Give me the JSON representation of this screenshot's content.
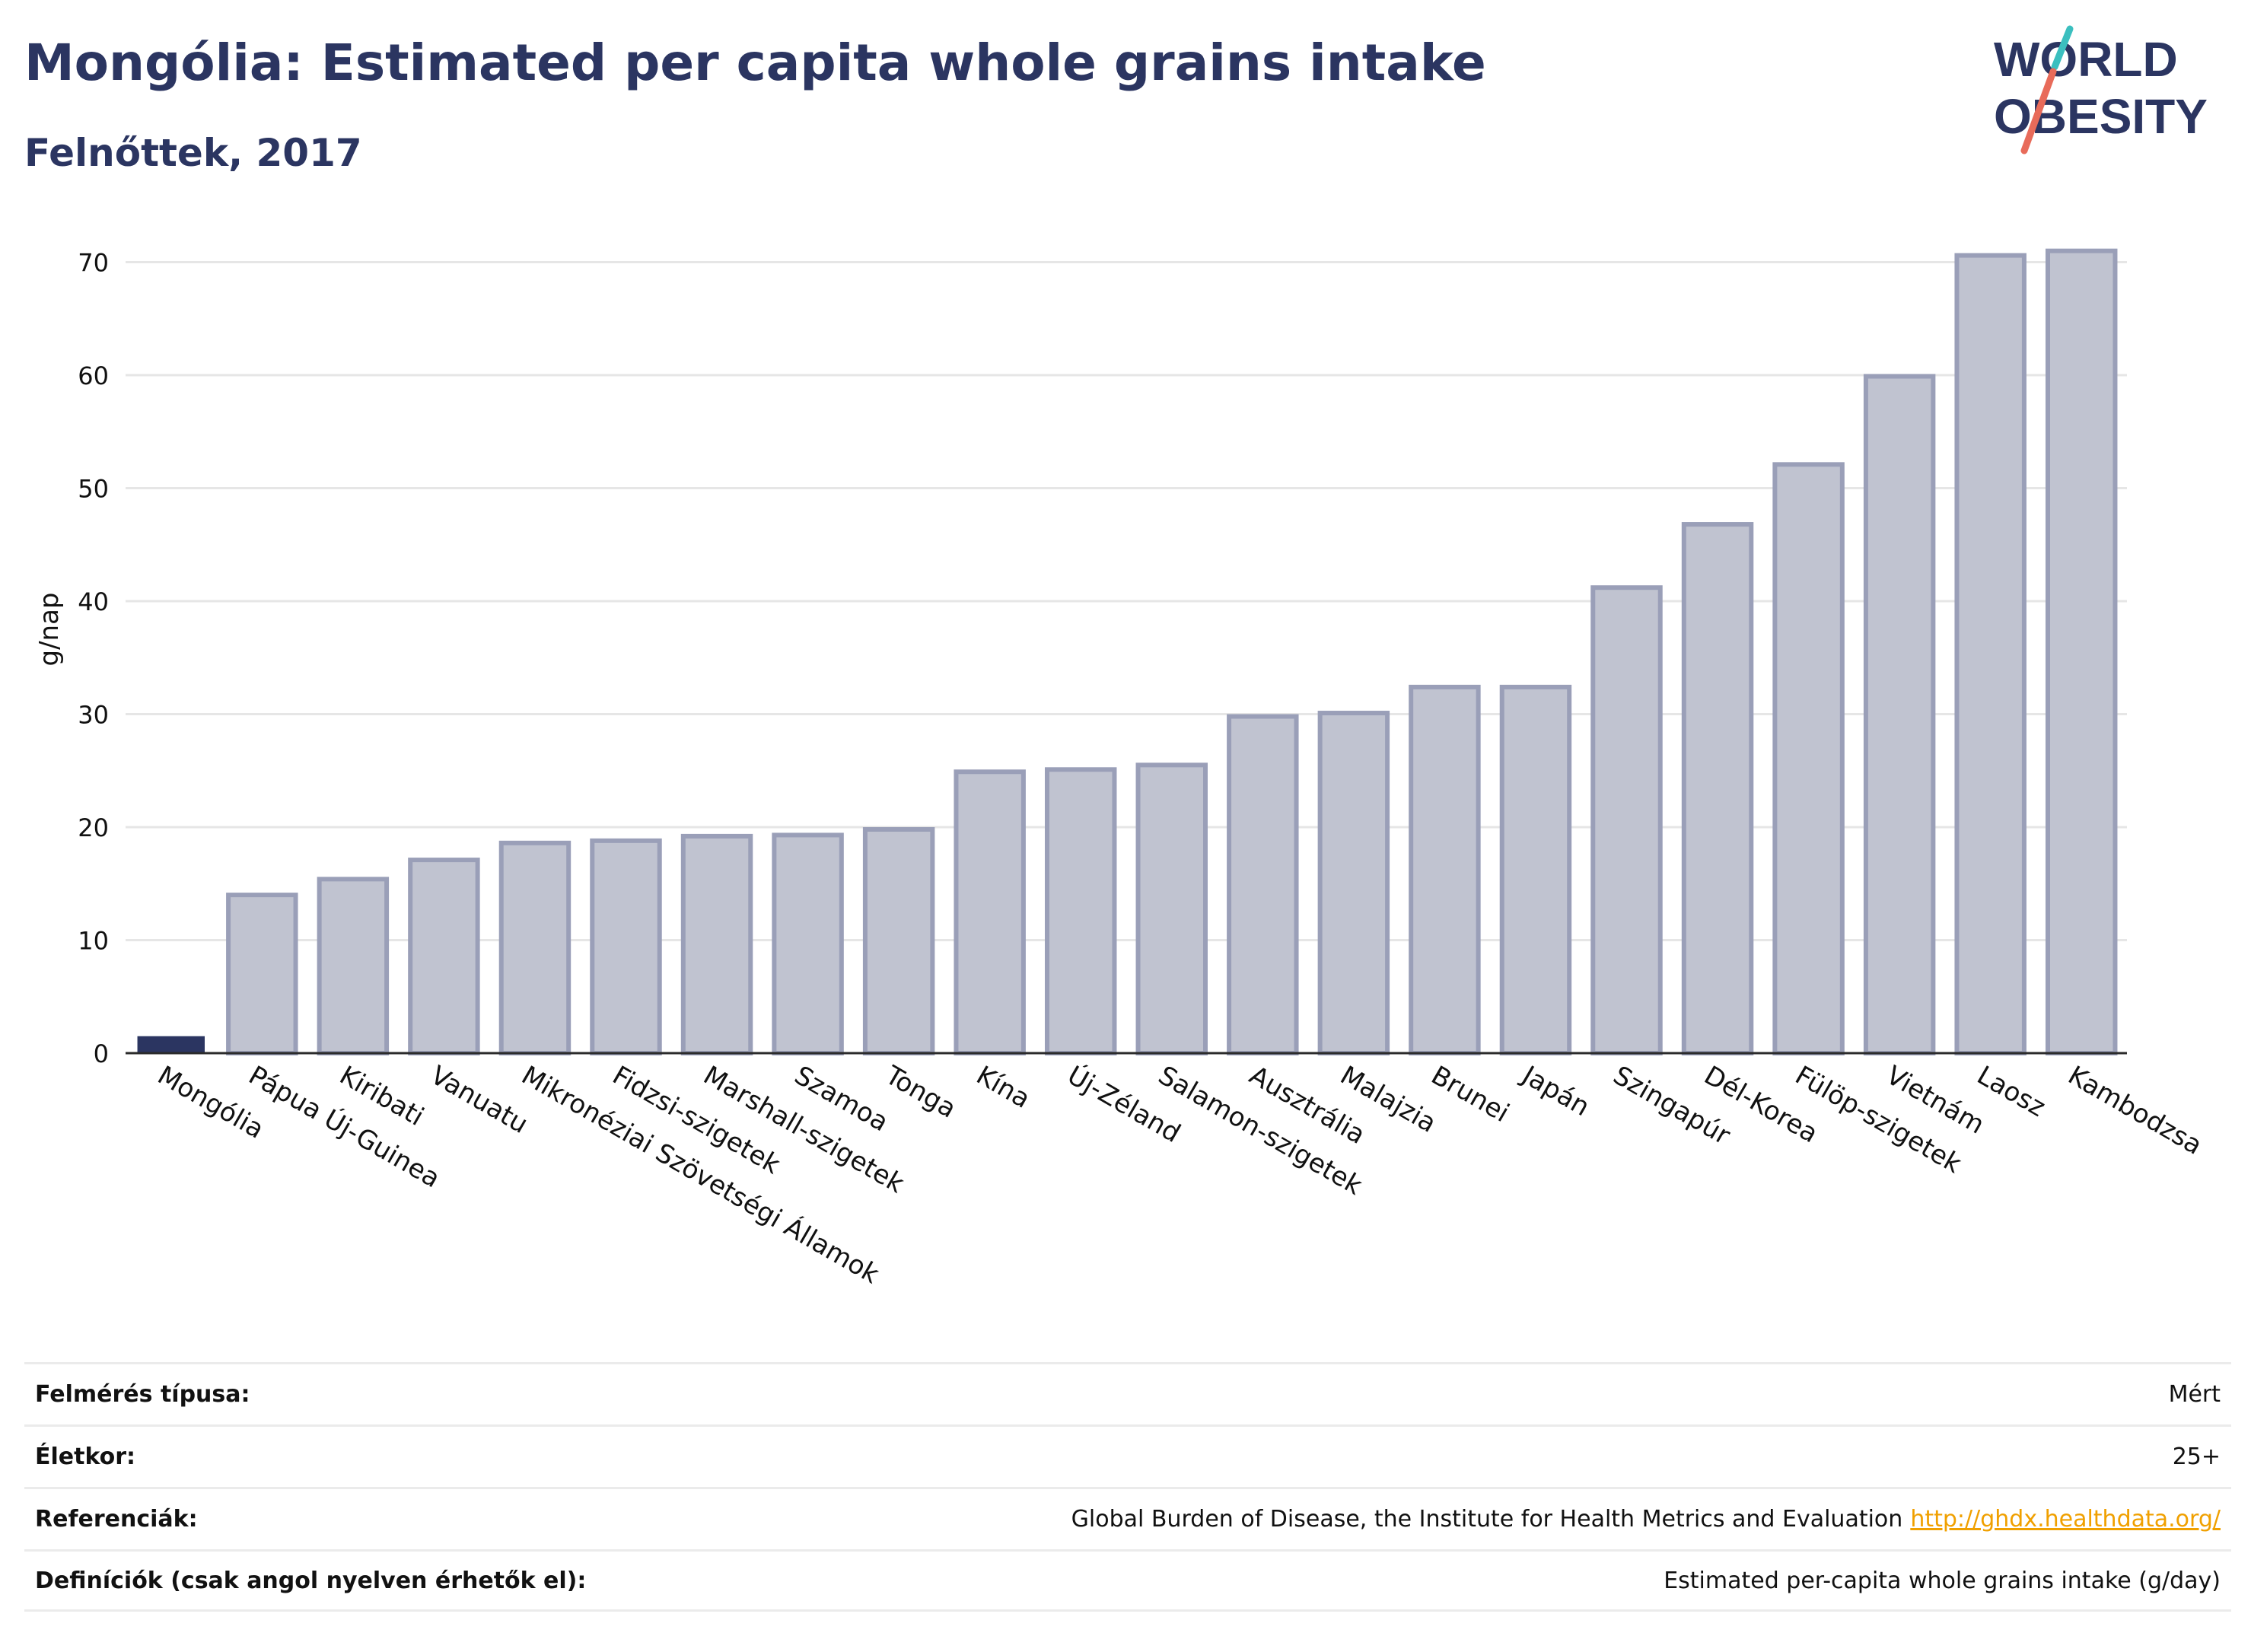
{
  "header": {
    "title": "Mongólia: Estimated per capita whole grains intake",
    "subtitle": "Felnőttek, 2017"
  },
  "logo": {
    "line1": "WORLD",
    "line2": "OBESITY"
  },
  "colors": {
    "highlight": "#2b3561",
    "bar_fill": "#c0c3d0",
    "bar_stroke": "#9a9fb8",
    "grid": "#e6e6e6",
    "link": "#f0a000",
    "logo_teal": "#3bbfbf",
    "logo_coral": "#e86b5a"
  },
  "chart_data": {
    "type": "bar",
    "ylabel": "g/nap",
    "ylim": [
      0,
      73
    ],
    "yticks": [
      0,
      10,
      20,
      30,
      40,
      50,
      60,
      70
    ],
    "grid": true,
    "highlighted_category": "Mongólia",
    "categories": [
      "Mongólia",
      "Pápua Új-Guinea",
      "Kiribati",
      "Vanuatu",
      "Mikronéziai Szövetségi Államok",
      "Fidzsi-szigetek",
      "Marshall-szigetek",
      "Szamoa",
      "Tonga",
      "Kína",
      "Új-Zéland",
      "Salamon-szigetek",
      "Ausztrália",
      "Malajzia",
      "Brunei",
      "Japán",
      "Szingapúr",
      "Dél-Korea",
      "Fülöp-szigetek",
      "Vietnám",
      "Laosz",
      "Kambodzsa"
    ],
    "values": [
      1.5,
      14,
      15.4,
      17.1,
      18.6,
      18.8,
      19.2,
      19.3,
      19.8,
      24.9,
      25.1,
      25.5,
      29.8,
      30.1,
      32.4,
      32.4,
      41.2,
      46.8,
      52.1,
      59.9,
      70.6,
      71
    ]
  },
  "info": {
    "rows": [
      {
        "label": "Felmérés típusa:",
        "value": "Mért"
      },
      {
        "label": "Életkor:",
        "value": "25+"
      },
      {
        "label": "Referenciák:",
        "value": "Global Burden of Disease, the Institute for Health Metrics and Evaluation",
        "link": "http://ghdx.healthdata.org/"
      },
      {
        "label": "Definíciók (csak angol nyelven érhetők el):",
        "value": "Estimated per-capita whole grains intake (g/day)"
      }
    ]
  }
}
